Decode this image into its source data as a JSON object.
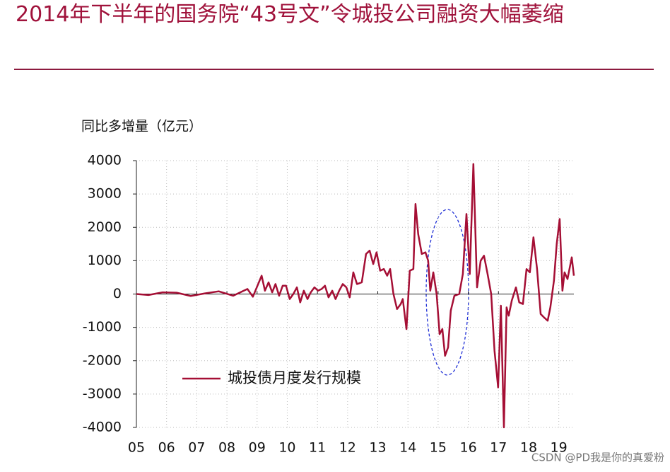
{
  "chart_data": {
    "type": "line",
    "title": "2014年下半年的国务院“43号文”令城投公司融资大幅萎缩",
    "y_label": "同比多增量（亿元）",
    "x": [
      5.0,
      5.4,
      5.87,
      6.33,
      6.8,
      7.27,
      7.73,
      8.21,
      8.56,
      8.68,
      8.86,
      9.15,
      9.26,
      9.38,
      9.5,
      9.61,
      9.73,
      9.85,
      9.96,
      10.08,
      10.2,
      10.32,
      10.43,
      10.55,
      10.67,
      10.78,
      10.9,
      11.02,
      11.14,
      11.25,
      11.37,
      11.49,
      11.6,
      11.72,
      11.84,
      11.96,
      12.07,
      12.19,
      12.31,
      12.47,
      12.61,
      12.73,
      12.85,
      12.96,
      13.08,
      13.2,
      13.31,
      13.41,
      13.52,
      13.64,
      13.76,
      13.83,
      13.95,
      14.06,
      14.18,
      14.25,
      14.34,
      14.46,
      14.58,
      14.67,
      14.74,
      14.84,
      14.95,
      15.05,
      15.14,
      15.23,
      15.33,
      15.42,
      15.54,
      15.7,
      15.82,
      15.94,
      16.05,
      16.17,
      16.29,
      16.41,
      16.52,
      16.64,
      16.76,
      16.87,
      16.99,
      17.08,
      17.18,
      17.27,
      17.34,
      17.44,
      17.58,
      17.69,
      17.81,
      17.93,
      18.04,
      18.16,
      18.28,
      18.4,
      18.51,
      18.63,
      18.72,
      18.84,
      18.93,
      19.03,
      19.12,
      19.19,
      19.29,
      19.43,
      19.5
    ],
    "series": [
      {
        "name": "城投债月度发行规模",
        "color": "#a50f35",
        "values": [
          0,
          -30,
          50,
          40,
          -60,
          20,
          80,
          -50,
          100,
          150,
          -80,
          550,
          100,
          350,
          50,
          300,
          -50,
          250,
          250,
          -150,
          0,
          200,
          -250,
          100,
          -150,
          50,
          200,
          100,
          150,
          250,
          -100,
          100,
          -150,
          100,
          300,
          200,
          -100,
          650,
          300,
          350,
          1200,
          1300,
          900,
          1250,
          700,
          750,
          550,
          750,
          0,
          -450,
          -300,
          -150,
          -1050,
          700,
          750,
          2700,
          1800,
          1200,
          1250,
          1000,
          100,
          650,
          0,
          -1200,
          -1050,
          -1850,
          -1600,
          -500,
          -50,
          0,
          600,
          2400,
          600,
          3900,
          200,
          1000,
          1150,
          600,
          0,
          -1700,
          -2800,
          -350,
          -4000,
          -400,
          -650,
          -200,
          200,
          -250,
          -300,
          750,
          650,
          1700,
          750,
          -600,
          -700,
          -800,
          -400,
          400,
          1500,
          2250,
          100,
          650,
          450,
          1100,
          550
        ]
      }
    ],
    "xlim": [
      5,
      19.5
    ],
    "xticks": [
      {
        "value": 5,
        "label": "05"
      },
      {
        "value": 6,
        "label": "06"
      },
      {
        "value": 7,
        "label": "07"
      },
      {
        "value": 8,
        "label": "08"
      },
      {
        "value": 9,
        "label": "09"
      },
      {
        "value": 10,
        "label": "10"
      },
      {
        "value": 11,
        "label": "11"
      },
      {
        "value": 12,
        "label": "12"
      },
      {
        "value": 13,
        "label": "13"
      },
      {
        "value": 14,
        "label": "14"
      },
      {
        "value": 15,
        "label": "15"
      },
      {
        "value": 16,
        "label": "16"
      },
      {
        "value": 17,
        "label": "17"
      },
      {
        "value": 18,
        "label": "18"
      },
      {
        "value": 19,
        "label": "19"
      }
    ],
    "ylim": [
      -4000,
      4000
    ],
    "yticks": [
      4000,
      3000,
      2000,
      1000,
      0,
      -1000,
      -2000,
      -3000,
      -4000
    ],
    "grid": true
  },
  "watermark": "CSDN @PD我是你的真爱粉"
}
